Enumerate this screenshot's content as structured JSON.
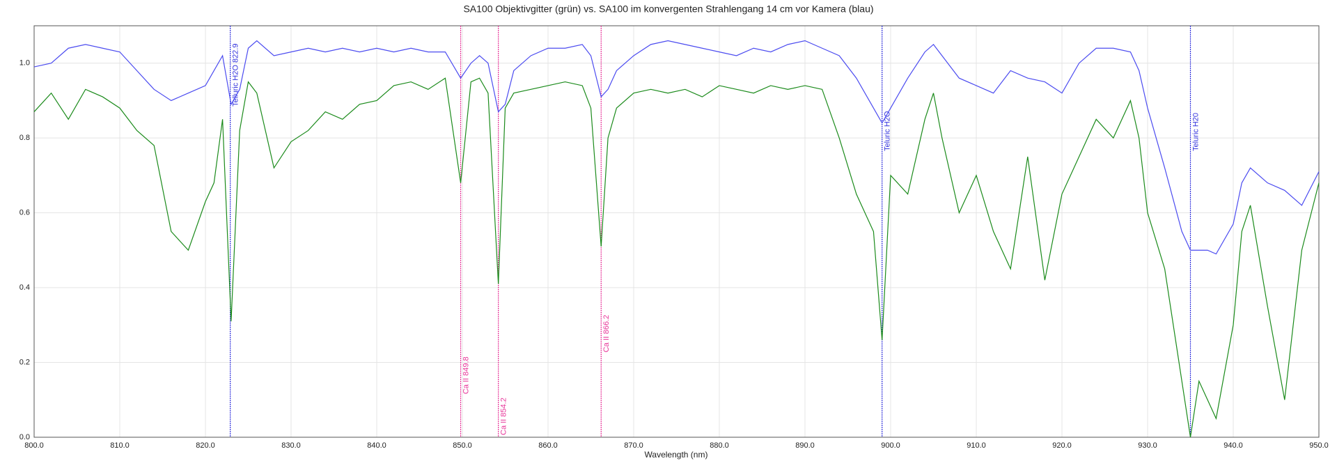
{
  "chart_data": {
    "type": "line",
    "title": "SA100 Objektivgitter (grün) vs. SA100 im konvergenten Strahlengang 14 cm vor Kamera (blau)",
    "x_label": "Wavelength (nm)",
    "x": [
      800,
      802,
      804,
      806,
      808,
      810,
      812,
      814,
      816,
      818,
      820,
      821,
      822,
      823,
      824,
      825,
      826,
      828,
      830,
      832,
      834,
      836,
      838,
      840,
      842,
      844,
      846,
      848,
      849.8,
      851,
      852,
      853,
      854.2,
      855,
      856,
      858,
      860,
      862,
      864,
      865,
      866.2,
      867,
      868,
      870,
      872,
      874,
      876,
      878,
      880,
      882,
      884,
      886,
      888,
      890,
      892,
      894,
      896,
      898,
      899,
      900,
      902,
      904,
      905,
      906,
      908,
      910,
      912,
      914,
      916,
      918,
      920,
      922,
      924,
      926,
      928,
      929,
      930,
      932,
      934,
      935,
      936,
      937,
      938,
      940,
      941,
      942,
      944,
      946,
      948,
      950
    ],
    "series": [
      {
        "color": "#4b4bf0",
        "values": [
          0.99,
          1.0,
          1.04,
          1.05,
          1.04,
          1.03,
          0.98,
          0.93,
          0.9,
          0.92,
          0.94,
          0.98,
          1.02,
          0.89,
          0.93,
          1.04,
          1.06,
          1.02,
          1.03,
          1.04,
          1.03,
          1.04,
          1.03,
          1.04,
          1.03,
          1.04,
          1.03,
          1.03,
          0.96,
          1.0,
          1.02,
          1.0,
          0.87,
          0.89,
          0.98,
          1.02,
          1.04,
          1.04,
          1.05,
          1.02,
          0.91,
          0.93,
          0.98,
          1.02,
          1.05,
          1.06,
          1.05,
          1.04,
          1.03,
          1.02,
          1.04,
          1.03,
          1.05,
          1.06,
          1.04,
          1.02,
          0.96,
          0.88,
          0.84,
          0.88,
          0.96,
          1.03,
          1.05,
          1.02,
          0.96,
          0.94,
          0.92,
          0.98,
          0.96,
          0.95,
          0.92,
          1.0,
          1.04,
          1.04,
          1.03,
          0.98,
          0.88,
          0.72,
          0.55,
          0.5,
          0.5,
          0.5,
          0.49,
          0.57,
          0.68,
          0.72,
          0.68,
          0.66,
          0.62,
          0.71
        ]
      },
      {
        "color": "#1a8a1a",
        "values": [
          0.87,
          0.92,
          0.85,
          0.93,
          0.91,
          0.88,
          0.82,
          0.78,
          0.55,
          0.5,
          0.63,
          0.68,
          0.85,
          0.31,
          0.82,
          0.95,
          0.92,
          0.72,
          0.79,
          0.82,
          0.87,
          0.85,
          0.89,
          0.9,
          0.94,
          0.95,
          0.93,
          0.96,
          0.68,
          0.95,
          0.96,
          0.92,
          0.41,
          0.88,
          0.92,
          0.93,
          0.94,
          0.95,
          0.94,
          0.88,
          0.51,
          0.8,
          0.88,
          0.92,
          0.93,
          0.92,
          0.93,
          0.91,
          0.94,
          0.93,
          0.92,
          0.94,
          0.93,
          0.94,
          0.93,
          0.8,
          0.65,
          0.55,
          0.26,
          0.7,
          0.65,
          0.85,
          0.92,
          0.8,
          0.6,
          0.7,
          0.55,
          0.45,
          0.75,
          0.42,
          0.65,
          0.75,
          0.85,
          0.8,
          0.9,
          0.8,
          0.6,
          0.45,
          0.15,
          0,
          0.15,
          0.1,
          0.05,
          0.3,
          0.55,
          0.62,
          0.35,
          0.1,
          0.5,
          0.68
        ]
      }
    ],
    "annotations": [
      {
        "x": 822.9,
        "label": "Telluric H2O 822.9",
        "color": "#3333dd"
      },
      {
        "x": 849.8,
        "label": "Ca II 849.8",
        "color": "#e8379a"
      },
      {
        "x": 854.2,
        "label": "Ca II 854.2",
        "color": "#e8379a"
      },
      {
        "x": 866.2,
        "label": "Ca II 866.2",
        "color": "#e8379a"
      },
      {
        "x": 899,
        "label": "Teluric H2O",
        "color": "#3333dd"
      },
      {
        "x": 935,
        "label": "Teluric H20",
        "color": "#3333dd"
      }
    ],
    "xlim": [
      800,
      950
    ],
    "xticks": [
      {
        "value": 800,
        "label": "800.0"
      },
      {
        "value": 810,
        "label": "810.0"
      },
      {
        "value": 820,
        "label": "820.0"
      },
      {
        "value": 830,
        "label": "830.0"
      },
      {
        "value": 840,
        "label": "840.0"
      },
      {
        "value": 850,
        "label": "850.0"
      },
      {
        "value": 860,
        "label": "860.0"
      },
      {
        "value": 870,
        "label": "870.0"
      },
      {
        "value": 880,
        "label": "880.0"
      },
      {
        "value": 890,
        "label": "890.0"
      },
      {
        "value": 900,
        "label": "900.0"
      },
      {
        "value": 910,
        "label": "910.0"
      },
      {
        "value": 920,
        "label": "920.0"
      },
      {
        "value": 930,
        "label": "930.0"
      },
      {
        "value": 940,
        "label": "940.0"
      },
      {
        "value": 950,
        "label": "950.0"
      }
    ],
    "ylim": [
      0,
      1.1
    ],
    "yticks": [
      {
        "value": 0,
        "label": "0.0"
      },
      0.2,
      0.4,
      0.6,
      0.8,
      {
        "value": 1,
        "label": "1.0"
      }
    ],
    "grid": true
  }
}
